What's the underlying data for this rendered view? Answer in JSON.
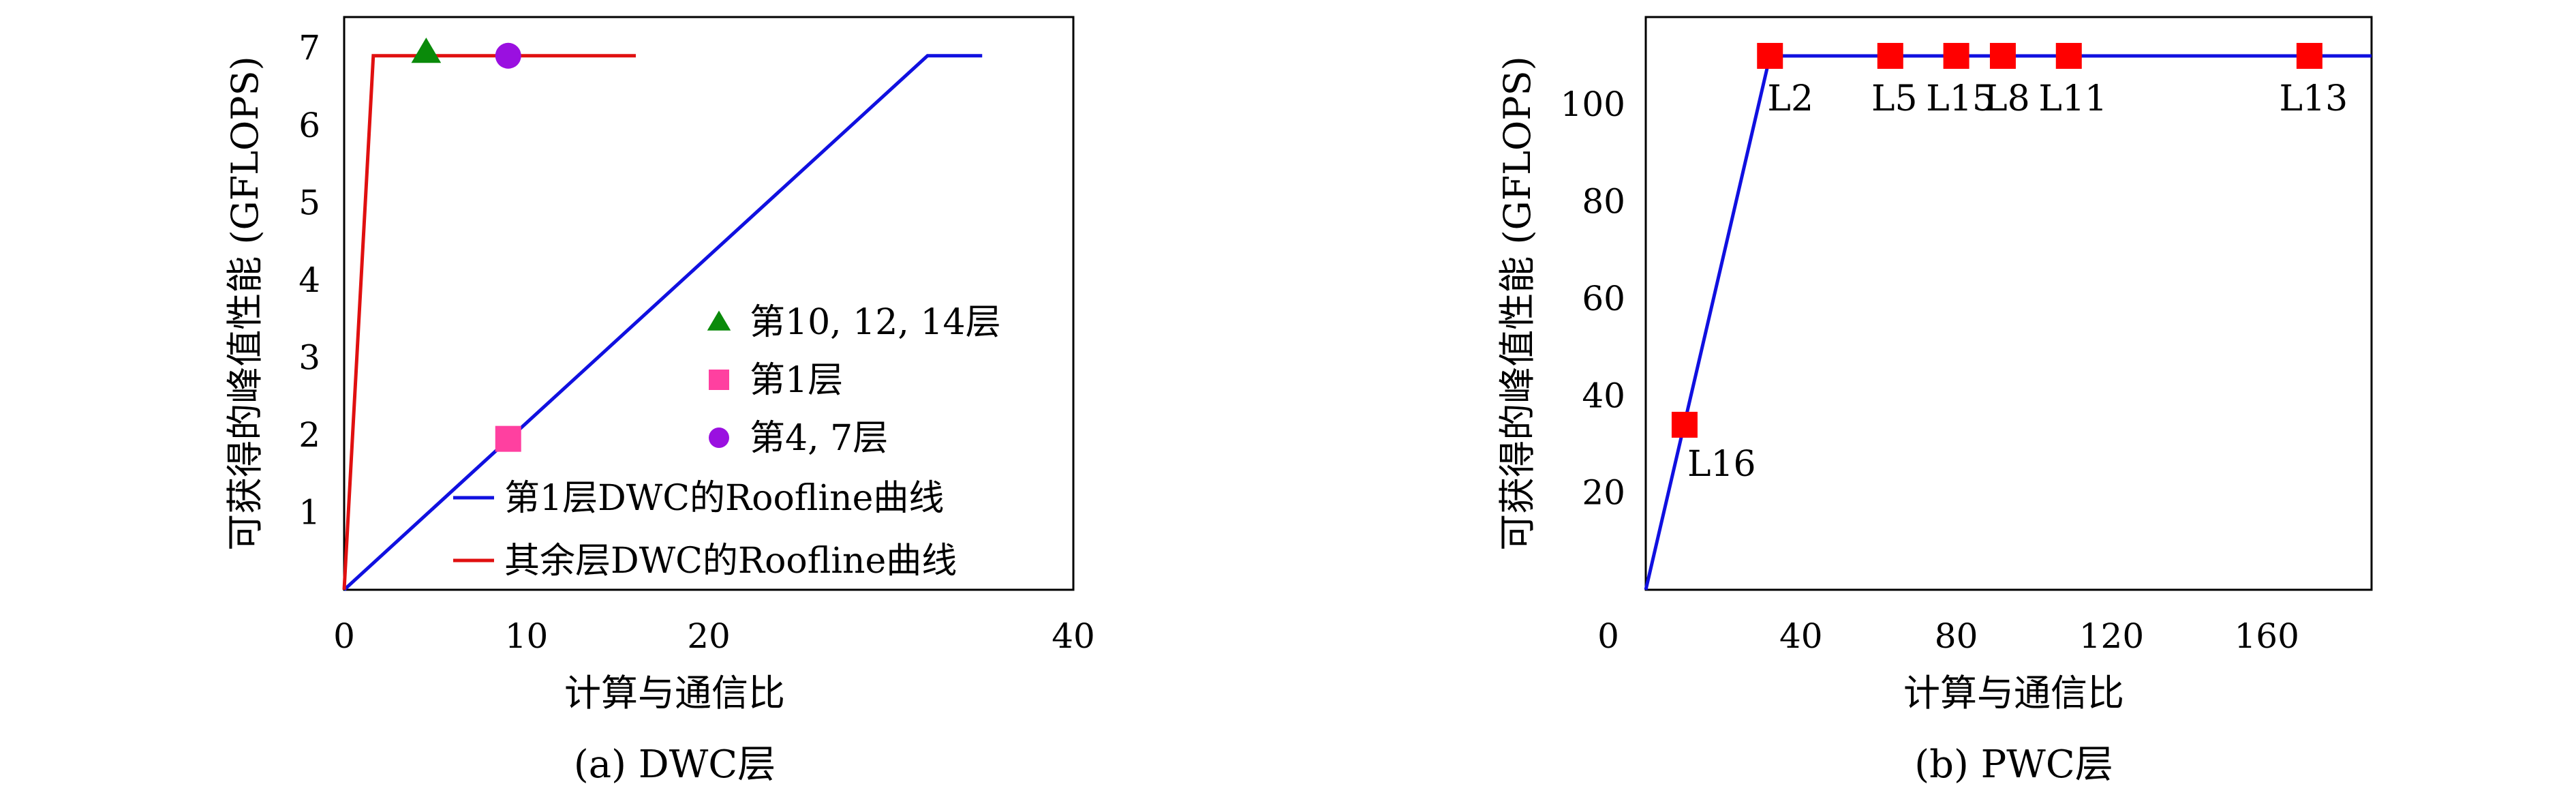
{
  "chart_data": [
    {
      "type": "line",
      "caption": "(a) DWC层",
      "xlabel": "计算与通信比",
      "ylabel": "可获得的峰值性能 (GFLOPS)",
      "xlim": [
        0,
        40
      ],
      "ylim": [
        0,
        7.4
      ],
      "x_ticks": [
        0,
        10,
        20,
        40
      ],
      "y_ticks": [
        1,
        2,
        3,
        4,
        5,
        6,
        7
      ],
      "grid": false,
      "legend_position": "bottom-right",
      "series": [
        {
          "name": "第1层DWC的Roofline曲线",
          "color": "#1010e0",
          "points": [
            [
              0,
              0
            ],
            [
              32,
              6.9
            ],
            [
              35,
              6.9
            ]
          ]
        },
        {
          "name": "其余层DWC的Roofline曲线",
          "color": "#e01010",
          "points": [
            [
              0,
              0
            ],
            [
              1.6,
              6.9
            ],
            [
              16,
              6.9
            ]
          ]
        }
      ],
      "markers": [
        {
          "name": "第10, 12, 14层",
          "shape": "triangle",
          "color": "#0a8a0a",
          "x": 4.5,
          "y": 6.95
        },
        {
          "name": "第1层",
          "shape": "square",
          "color": "#ff40a0",
          "x": 9,
          "y": 1.95
        },
        {
          "name": "第4, 7层",
          "shape": "circle",
          "color": "#9a10e0",
          "x": 9,
          "y": 6.9
        }
      ]
    },
    {
      "type": "line",
      "caption": "(b) PWC层",
      "xlabel": "计算与通信比",
      "ylabel": "可获得的峰值性能 (GFLOPS)",
      "xlim": [
        0,
        187
      ],
      "ylim": [
        0,
        118
      ],
      "x_ticks": [
        0,
        40,
        80,
        120,
        160
      ],
      "y_ticks": [
        20,
        40,
        60,
        80,
        100
      ],
      "grid": false,
      "series": [
        {
          "name": "",
          "color": "#1010e0",
          "points": [
            [
              0,
              0
            ],
            [
              32,
              110
            ],
            [
              187,
              110
            ]
          ]
        }
      ],
      "points": [
        {
          "label": "L16",
          "x": 10,
          "y": 34,
          "color": "#ff0000"
        },
        {
          "label": "L2",
          "x": 32,
          "y": 110,
          "color": "#ff0000"
        },
        {
          "label": "L5",
          "x": 63,
          "y": 110,
          "color": "#ff0000"
        },
        {
          "label": "L15",
          "x": 80,
          "y": 110,
          "color": "#ff0000"
        },
        {
          "label": "L8",
          "x": 92,
          "y": 110,
          "color": "#ff0000"
        },
        {
          "label": "L11",
          "x": 109,
          "y": 110,
          "color": "#ff0000"
        },
        {
          "label": "L13",
          "x": 171,
          "y": 110,
          "color": "#ff0000"
        }
      ]
    }
  ]
}
